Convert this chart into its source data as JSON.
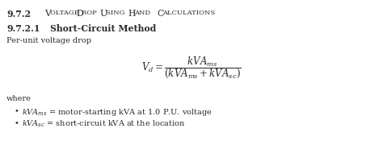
{
  "bg_color": "#ffffff",
  "text_color": "#2b2b2b",
  "section_num": "9.7.2",
  "section_title": "Voltage Drop Using Hand Calculations",
  "subsection_num": "9.7.2.1",
  "subsection_title": "Short-Circuit Method",
  "per_unit_label": "Per-unit voltage drop",
  "where_label": "where",
  "bullet1_formula": "$kVA_{ms}$",
  "bullet1_rest": " = motor-starting kVA at 1.0 P.U. voltage",
  "bullet2_formula": "$kVA_{sc}$",
  "bullet2_rest": " = short-circuit kVA at the location",
  "formula": "$V_d = \\dfrac{kVA_{ms}}{\\left(kVA_{ms} + kVA_{sc}\\right)}$",
  "title_fontsize": 7.8,
  "body_fontsize": 7.0,
  "formula_fontsize": 8.5
}
